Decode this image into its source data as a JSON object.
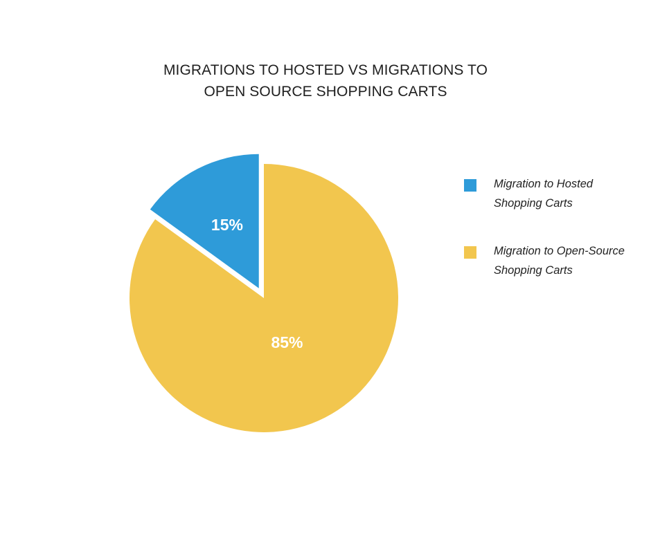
{
  "chart_data": {
    "type": "pie",
    "title_lines": [
      "MIGRATIONS TO HOSTED VS MIGRATIONS TO",
      "OPEN SOURCE SHOPPING CARTS"
    ],
    "slices": [
      {
        "name": "Migration to Hosted Shopping Carts",
        "value": 15,
        "label": "15%",
        "color": "#2e9bd9",
        "exploded": true
      },
      {
        "name": "Migration to Open-Source Shopping Carts",
        "value": 85,
        "label": "85%",
        "color": "#f2c64e",
        "exploded": false
      }
    ],
    "legend_position": "right",
    "legend": [
      {
        "lines": [
          "Migration to Hosted",
          "Shopping Carts"
        ],
        "color": "#2e9bd9"
      },
      {
        "lines": [
          "Migration to Open-Source",
          "Shopping Carts"
        ],
        "color": "#f2c64e"
      }
    ]
  }
}
